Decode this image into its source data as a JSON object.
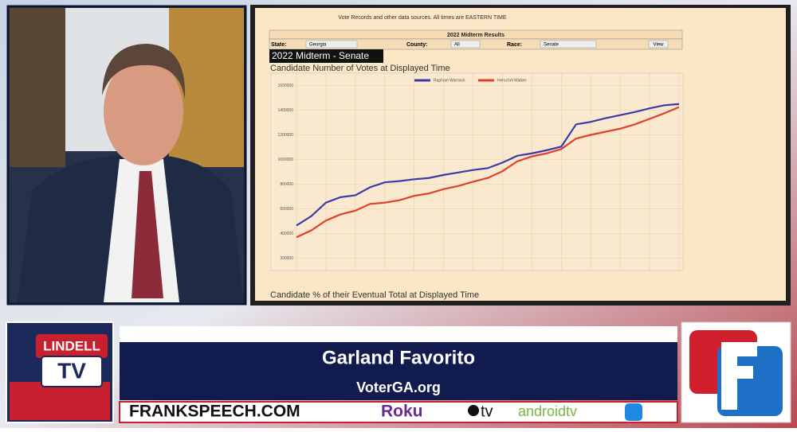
{
  "broadcast": {
    "logo": [
      "LINDELL",
      "TV"
    ],
    "guest_name": "Garland Favorito",
    "guest_site": "VoterGA.org",
    "network": "FRANKSPEECH.COM",
    "platforms": [
      "Roku",
      "tv",
      "androidtv"
    ]
  },
  "screen": {
    "header_text": "Vote Records and other data sources. All times are EASTERN TIME",
    "panel_title": "2022 Midterm Results",
    "filters": [
      {
        "label": "State:",
        "value": "Georgia"
      },
      {
        "label": "County:",
        "value": "All"
      },
      {
        "label": "Race:",
        "value": "Senate"
      }
    ],
    "button": "View",
    "section_title": "2022 Midterm - Senate",
    "next_chart_title": "Candidate % of their Eventual Total at Displayed Time"
  },
  "chart_data": {
    "type": "line",
    "title": "Candidate Number of Votes at Displayed Time",
    "series": [
      {
        "name": "Raphael Warnock",
        "color": "#3a3aa8",
        "values": [
          465000,
          540000,
          650000,
          695000,
          710000,
          775000,
          815000,
          825000,
          840000,
          850000,
          875000,
          895000,
          915000,
          930000,
          975000,
          1030000,
          1050000,
          1075000,
          1105000,
          1285000,
          1305000,
          1335000,
          1360000,
          1385000,
          1415000,
          1440000,
          1450000
        ]
      },
      {
        "name": "Herschel Walker",
        "color": "#e0402a",
        "values": [
          370000,
          425000,
          505000,
          555000,
          585000,
          640000,
          650000,
          670000,
          705000,
          725000,
          760000,
          785000,
          820000,
          850000,
          905000,
          985000,
          1025000,
          1050000,
          1085000,
          1170000,
          1200000,
          1225000,
          1250000,
          1285000,
          1330000,
          1375000,
          1425000
        ]
      }
    ],
    "ylim": [
      100000,
      1700000
    ],
    "yticks": [
      200000,
      400000,
      600000,
      800000,
      1000000,
      1200000,
      1400000,
      1600000
    ],
    "grid": true
  }
}
